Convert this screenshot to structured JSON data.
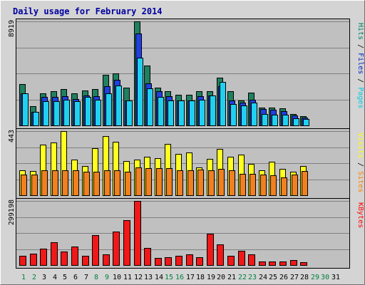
{
  "chart_data": {
    "type": "bar",
    "title": "Daily usage for February 2014",
    "categories": [
      "1",
      "2",
      "3",
      "4",
      "5",
      "6",
      "7",
      "8",
      "9",
      "10",
      "11",
      "12",
      "13",
      "14",
      "15",
      "16",
      "17",
      "18",
      "19",
      "20",
      "21",
      "22",
      "23",
      "24",
      "25",
      "26",
      "27",
      "28",
      "29",
      "30",
      "31"
    ],
    "weekend_days": [
      "1",
      "2",
      "8",
      "9",
      "15",
      "16",
      "22",
      "23",
      "29",
      "30"
    ],
    "days_with_data": 28,
    "panels": [
      {
        "id": "hits",
        "max_label": "8919",
        "ylim": [
          0,
          8919
        ],
        "grid": true,
        "legend_side": "right",
        "legend": [
          {
            "label": "Pages",
            "color": "#00c8e0"
          },
          {
            "label": "Files",
            "color": "#0026c8"
          },
          {
            "label": "Hits",
            "color": "#008060"
          }
        ],
        "series": [
          {
            "name": "Hits",
            "color": "#208060",
            "values": [
              3540,
              1660,
              2760,
              2910,
              3100,
              2760,
              2980,
              3110,
              4340,
              4440,
              3230,
              8919,
              5150,
              3230,
              2920,
              2650,
              2650,
              2920,
              2920,
              4110,
              2920,
              2130,
              2810,
              1550,
              1500,
              1450,
              970,
              780
            ]
          },
          {
            "name": "Files",
            "color": "#2040e0",
            "values": [
              2760,
              1190,
              2430,
              2430,
              2500,
              2290,
              2560,
              2480,
              3330,
              3910,
              2160,
              7880,
              3620,
              2920,
              2520,
              2160,
              2160,
              2500,
              2560,
              3380,
              2160,
              1940,
              2220,
              1380,
              1320,
              1230,
              830,
              680
            ]
          },
          {
            "name": "Pages",
            "color": "#20d0f0",
            "values": [
              2750,
              1150,
              2050,
              2050,
              2180,
              2050,
              2460,
              2180,
              2730,
              3430,
              2120,
              5800,
              3160,
              2460,
              2120,
              2120,
              2120,
              2180,
              2550,
              3700,
              1810,
              1740,
              1930,
              950,
              920,
              910,
              630,
              550
            ]
          }
        ]
      },
      {
        "id": "visits",
        "max_label": "443",
        "ylim": [
          0,
          443
        ],
        "grid": true,
        "legend_side": "right",
        "legend": [
          {
            "label": "Sites",
            "color": "#ff8000"
          },
          {
            "label": "Visits",
            "color": "#ffff00"
          }
        ],
        "series": [
          {
            "name": "Visits",
            "color": "#ffff20",
            "values": [
              173,
              168,
              349,
              364,
              443,
              246,
              200,
              324,
              407,
              368,
              237,
              244,
              265,
              257,
              353,
              285,
              295,
              194,
              253,
              320,
              264,
              282,
              218,
              174,
              229,
              184,
              163,
              201
            ]
          },
          {
            "name": "Sites",
            "color": "#f08020",
            "values": [
              143,
              142,
              170,
              172,
              172,
              170,
              161,
              161,
              170,
              171,
              160,
              190,
              188,
              185,
              187,
              170,
              170,
              176,
              174,
              180,
              170,
              146,
              149,
              144,
              136,
              124,
              144,
              169
            ]
          }
        ]
      },
      {
        "id": "kbytes",
        "max_label": "299198",
        "ylim": [
          0,
          299198
        ],
        "grid": true,
        "legend_side": "right",
        "legend": [
          {
            "label": "KBytes",
            "color": "#ff0000"
          }
        ],
        "series": [
          {
            "name": "KBytes",
            "color": "#f01818",
            "values": [
              44000,
              54000,
              76000,
              108000,
              64000,
              88000,
              44000,
              140000,
              50000,
              157000,
              211000,
              299198,
              80000,
              33000,
              36000,
              43000,
              50000,
              38000,
              146000,
              97000,
              42000,
              68000,
              50000,
              17000,
              18000,
              18000,
              24000,
              12000
            ]
          }
        ]
      }
    ]
  }
}
